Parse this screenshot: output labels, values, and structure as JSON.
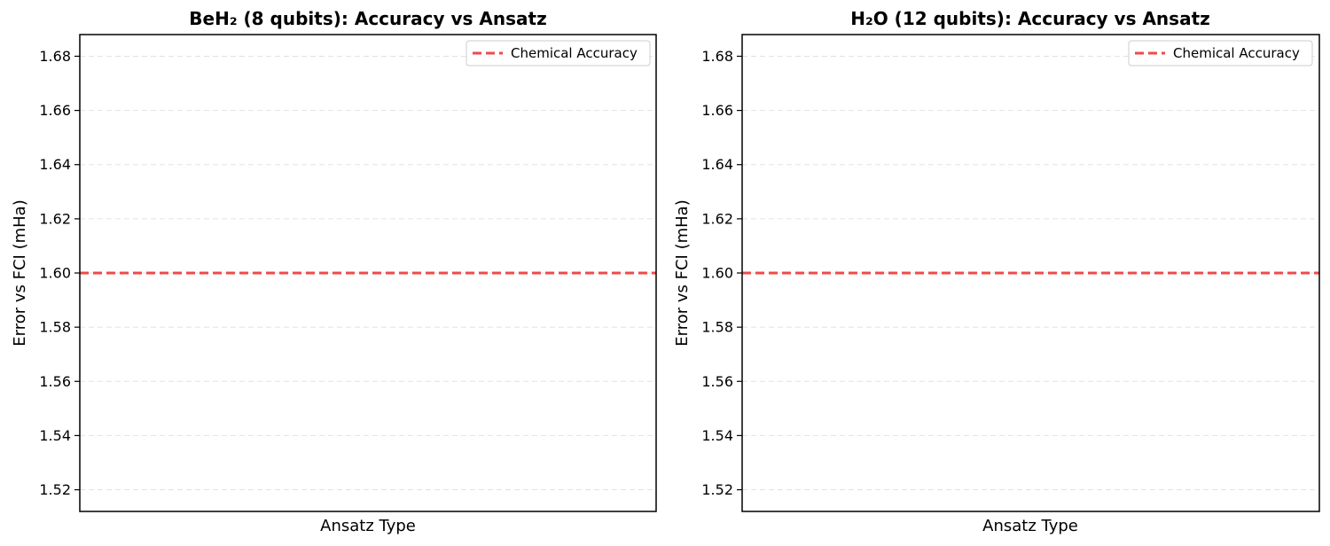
{
  "chart_data": [
    {
      "type": "bar",
      "title": "BeH₂ (8 qubits): Accuracy vs Ansatz",
      "xlabel": "Ansatz Type",
      "ylabel": "Error vs FCI (mHa)",
      "ylim": [
        1.512,
        1.688
      ],
      "yticks": [
        "1.52",
        "1.54",
        "1.56",
        "1.58",
        "1.60",
        "1.62",
        "1.64",
        "1.66",
        "1.68"
      ],
      "categories": [],
      "series": [],
      "reference_lines": [
        {
          "name": "Chemical Accuracy",
          "y": 1.6,
          "color": "#f04a4a",
          "style": "dashed"
        }
      ],
      "legend": {
        "placement": "top-right",
        "entries": [
          "Chemical Accuracy"
        ]
      },
      "grid": {
        "y": true,
        "x": false
      }
    },
    {
      "type": "bar",
      "title": "H₂O (12 qubits): Accuracy vs Ansatz",
      "xlabel": "Ansatz Type",
      "ylabel": "Error vs FCI (mHa)",
      "ylim": [
        1.512,
        1.688
      ],
      "yticks": [
        "1.52",
        "1.54",
        "1.56",
        "1.58",
        "1.60",
        "1.62",
        "1.64",
        "1.66",
        "1.68"
      ],
      "categories": [],
      "series": [],
      "reference_lines": [
        {
          "name": "Chemical Accuracy",
          "y": 1.6,
          "color": "#f04a4a",
          "style": "dashed"
        }
      ],
      "legend": {
        "placement": "top-right",
        "entries": [
          "Chemical Accuracy"
        ]
      },
      "grid": {
        "y": true,
        "x": false
      }
    }
  ]
}
